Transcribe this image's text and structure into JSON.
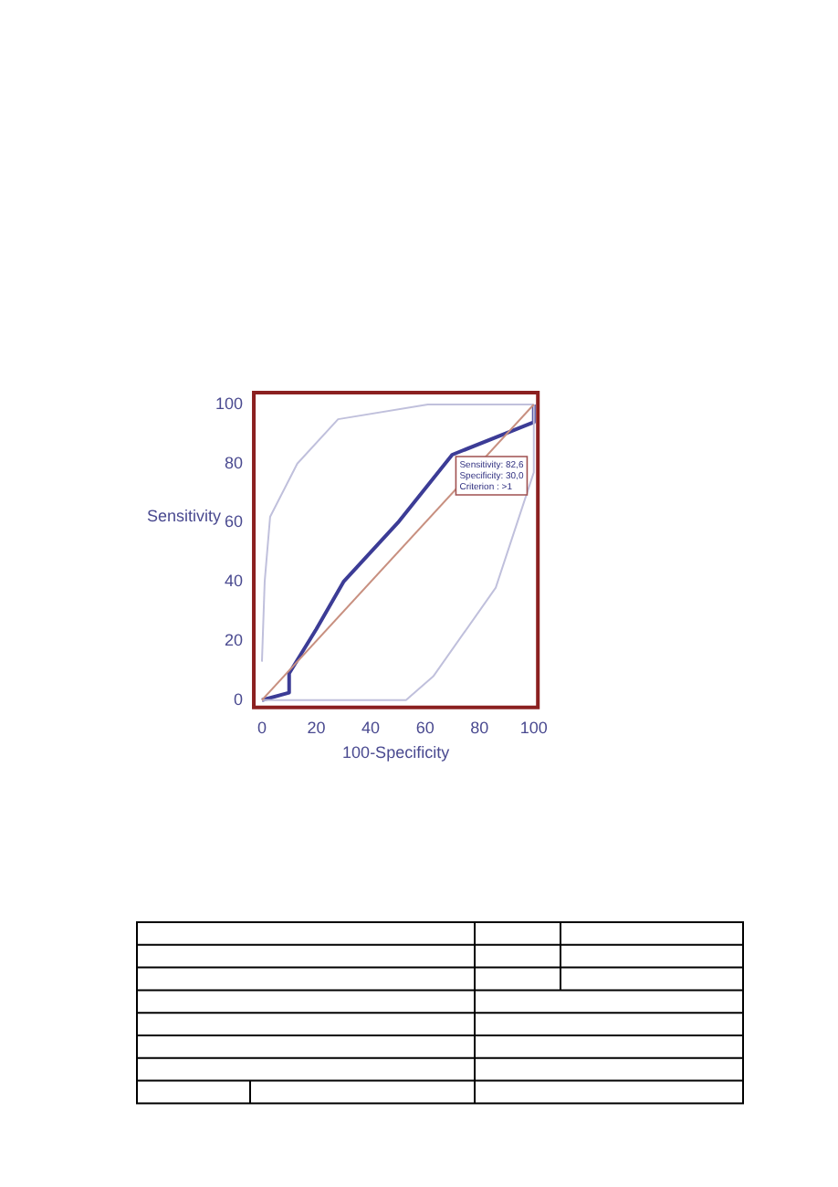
{
  "chart_data": {
    "type": "line",
    "xlabel": "100-Specificity",
    "ylabel": "Sensitivity",
    "xlim": [
      -3,
      101.5
    ],
    "ylim": [
      -2.5,
      104
    ],
    "xticks": [
      0,
      20,
      40,
      60,
      80,
      100
    ],
    "yticks": [
      0,
      20,
      40,
      60,
      80,
      100
    ],
    "grid": false,
    "legend": false,
    "marker": "none",
    "series": [
      {
        "color": "#c89080",
        "x": [
          0,
          100
        ],
        "values": [
          0,
          100
        ]
      },
      {
        "color": "#c0c0dc",
        "x": [
          0,
          1,
          3,
          13,
          28,
          61,
          100
        ],
        "values": [
          13,
          40,
          62,
          80,
          95,
          100,
          100
        ]
      },
      {
        "color": "#c0c0dc",
        "x": [
          0,
          53,
          63,
          86,
          100,
          100
        ],
        "values": [
          0,
          0,
          8,
          38,
          77,
          100
        ]
      },
      {
        "color": "#3c3c96",
        "x": [
          0,
          10,
          10,
          20,
          30,
          50,
          70,
          100,
          100
        ],
        "values": [
          0,
          2.5,
          9,
          24,
          40,
          60,
          83,
          94,
          100
        ]
      }
    ],
    "annotations": [
      {
        "text": "Sensitivity: 82,6\nSpecificity: 30,0\nCriterion : >1",
        "x": 70,
        "y": 83
      }
    ]
  }
}
